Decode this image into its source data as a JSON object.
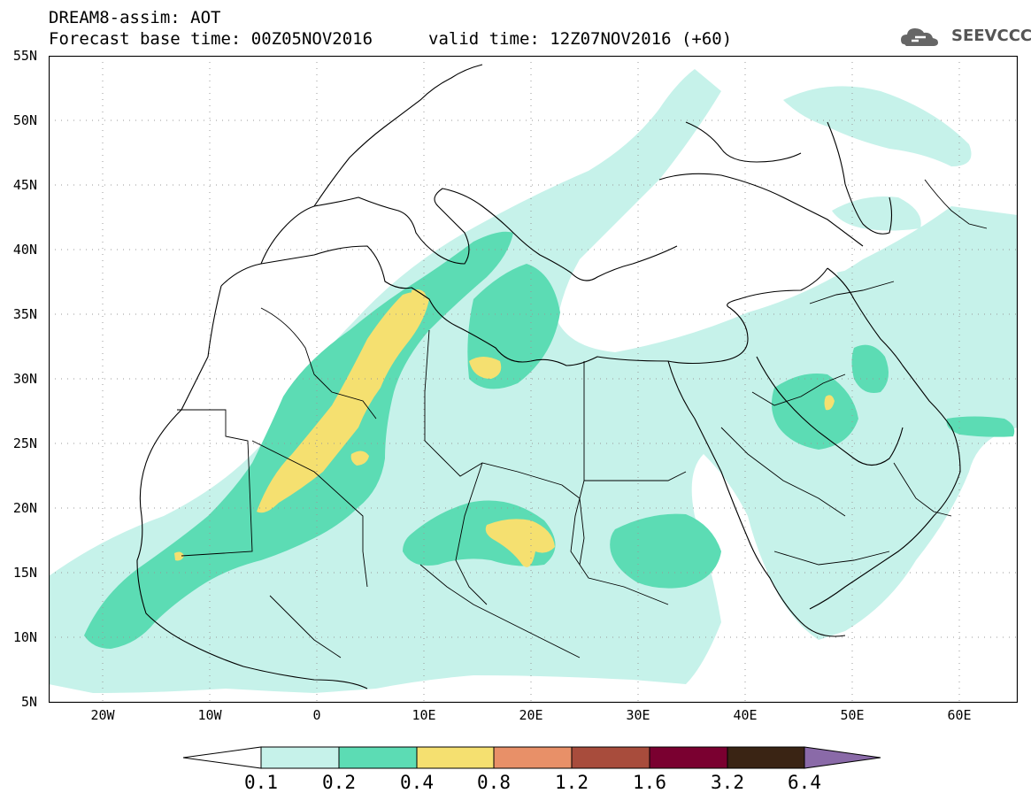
{
  "title": {
    "line1": "DREAM8-assim: AOT",
    "line2": "Forecast base time: 00Z05NOV2016",
    "valid": "valid time: 12Z07NOV2016 (+60)"
  },
  "logo": {
    "text": "SEEVCCC",
    "icon": "cloud-icon"
  },
  "map": {
    "lon_range": [
      -25,
      65
    ],
    "lat_range": [
      5,
      55
    ],
    "lat_labels": [
      "55N",
      "50N",
      "45N",
      "40N",
      "35N",
      "30N",
      "25N",
      "20N",
      "15N",
      "10N",
      "5N"
    ],
    "lon_labels": [
      "20W",
      "10W",
      "0",
      "10E",
      "20E",
      "30E",
      "40E",
      "50E",
      "60E"
    ],
    "grid": "dotted"
  },
  "colorbar": {
    "labels": [
      "0.1",
      "0.2",
      "0.4",
      "0.8",
      "1.2",
      "1.6",
      "3.2",
      "6.4"
    ],
    "colors": [
      "#ffffff",
      "#c6f2ea",
      "#5cdcb4",
      "#f5e070",
      "#e89068",
      "#a84c3c",
      "#7a0030",
      "#3a2414",
      "#8a6aa8"
    ]
  }
}
